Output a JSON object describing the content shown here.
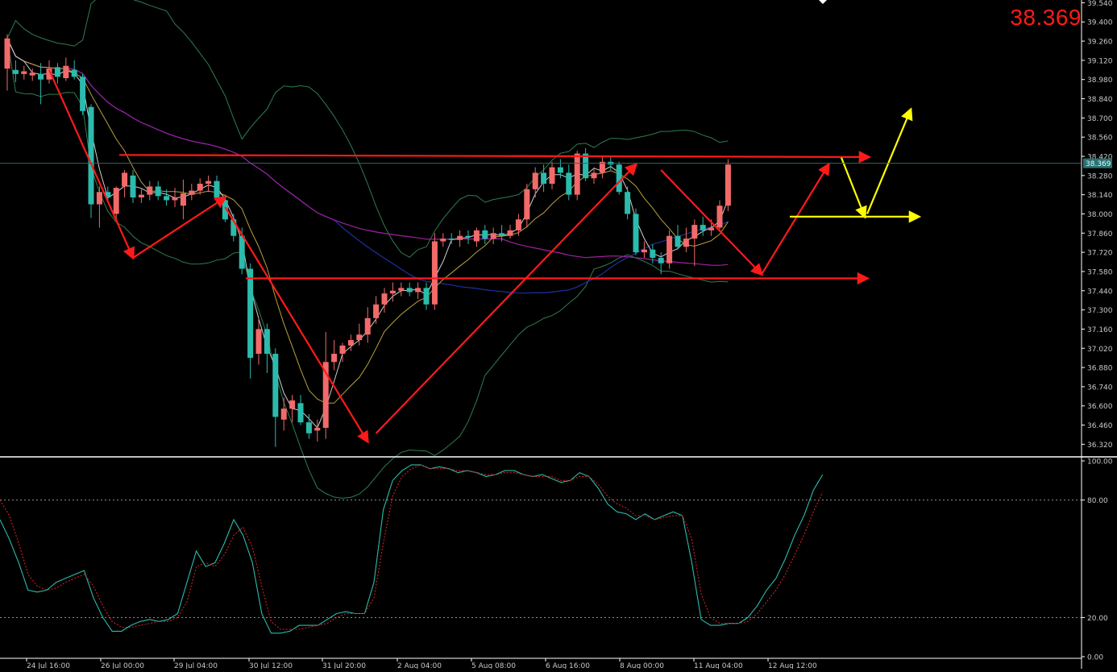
{
  "window": {
    "price_readout": "38.369"
  },
  "colors": {
    "background": "#000000",
    "bull_candle": "#f26a6a",
    "bear_candle": "#2bbbad",
    "axis": "#ffffff",
    "grid_label": "#c8c8c8",
    "annotation_red": "#ff1a1a",
    "annotation_yellow": "#ffff00",
    "bollinger": "#2e7d4f",
    "ma_fast": "#d0d0d0",
    "ma_mid": "#b8a23a",
    "ma_slow_blue": "#1f2fa0",
    "ma_magenta": "#a020a0",
    "current_price_line": "#2a6a6a",
    "stoch_main": "#2bbbad",
    "stoch_signal": "#d02020"
  },
  "chart_data": [
    {
      "type": "candlestick",
      "panel": "price",
      "y_ticks": [
        "39.540",
        "39.400",
        "39.260",
        "39.120",
        "38.980",
        "38.840",
        "38.700",
        "38.560",
        "38.420",
        "38.280",
        "38.140",
        "38.000",
        "37.860",
        "37.720",
        "37.580",
        "37.440",
        "37.300",
        "37.160",
        "37.020",
        "36.880",
        "36.740",
        "36.600",
        "36.460",
        "36.320"
      ],
      "ylim": [
        36.24,
        39.56
      ],
      "current_price_label": "38.369",
      "x_tick_labels": [
        "24 Jul 16:00",
        "26 Jul 00:00",
        "29 Jul 04:00",
        "30 Jul 12:00",
        "31 Jul 20:00",
        "2 Aug 04:00",
        "5 Aug 08:00",
        "6 Aug 16:00",
        "8 Aug 00:00",
        "11 Aug 04:00",
        "12 Aug 12:00"
      ],
      "horizontal_levels": [
        38.43,
        37.53,
        37.98
      ],
      "candles": [
        {
          "o": 39.06,
          "h": 39.31,
          "l": 38.9,
          "c": 39.28
        },
        {
          "o": 39.05,
          "h": 39.12,
          "l": 38.96,
          "c": 39.02
        },
        {
          "o": 39.02,
          "h": 39.08,
          "l": 38.98,
          "c": 39.04
        },
        {
          "o": 39.01,
          "h": 39.06,
          "l": 38.97,
          "c": 39.03
        },
        {
          "o": 39.02,
          "h": 39.1,
          "l": 38.8,
          "c": 38.98
        },
        {
          "o": 38.98,
          "h": 39.12,
          "l": 38.95,
          "c": 39.06
        },
        {
          "o": 39.07,
          "h": 39.1,
          "l": 38.95,
          "c": 39.0
        },
        {
          "o": 38.99,
          "h": 39.14,
          "l": 38.97,
          "c": 39.08
        },
        {
          "o": 39.05,
          "h": 39.12,
          "l": 38.98,
          "c": 39.0
        },
        {
          "o": 39.0,
          "h": 39.02,
          "l": 38.72,
          "c": 38.75
        },
        {
          "o": 38.78,
          "h": 38.8,
          "l": 37.97,
          "c": 38.07
        },
        {
          "o": 38.07,
          "h": 38.2,
          "l": 37.9,
          "c": 38.16
        },
        {
          "o": 38.16,
          "h": 38.2,
          "l": 38.1,
          "c": 38.12
        },
        {
          "o": 38.0,
          "h": 38.2,
          "l": 37.96,
          "c": 38.19
        },
        {
          "o": 38.2,
          "h": 38.32,
          "l": 38.12,
          "c": 38.3
        },
        {
          "o": 38.28,
          "h": 38.32,
          "l": 38.08,
          "c": 38.12
        },
        {
          "o": 38.12,
          "h": 38.18,
          "l": 38.08,
          "c": 38.14
        },
        {
          "o": 38.14,
          "h": 38.24,
          "l": 38.1,
          "c": 38.2
        },
        {
          "o": 38.2,
          "h": 38.24,
          "l": 38.1,
          "c": 38.13
        },
        {
          "o": 38.13,
          "h": 38.18,
          "l": 38.06,
          "c": 38.1
        },
        {
          "o": 38.1,
          "h": 38.19,
          "l": 38.05,
          "c": 38.12
        },
        {
          "o": 38.06,
          "h": 38.25,
          "l": 37.96,
          "c": 38.15
        },
        {
          "o": 38.14,
          "h": 38.22,
          "l": 38.1,
          "c": 38.17
        },
        {
          "o": 38.17,
          "h": 38.26,
          "l": 38.14,
          "c": 38.22
        },
        {
          "o": 38.22,
          "h": 38.28,
          "l": 38.16,
          "c": 38.24
        },
        {
          "o": 38.24,
          "h": 38.28,
          "l": 38.08,
          "c": 38.12
        },
        {
          "o": 38.1,
          "h": 38.14,
          "l": 37.94,
          "c": 37.96
        },
        {
          "o": 37.96,
          "h": 38.0,
          "l": 37.8,
          "c": 37.84
        },
        {
          "o": 37.84,
          "h": 37.9,
          "l": 37.56,
          "c": 37.6
        },
        {
          "o": 37.6,
          "h": 37.64,
          "l": 36.8,
          "c": 36.95
        },
        {
          "o": 36.98,
          "h": 37.24,
          "l": 36.9,
          "c": 37.16
        },
        {
          "o": 37.16,
          "h": 37.2,
          "l": 36.84,
          "c": 36.98
        },
        {
          "o": 36.98,
          "h": 37.02,
          "l": 36.3,
          "c": 36.52
        },
        {
          "o": 36.5,
          "h": 36.66,
          "l": 36.42,
          "c": 36.58
        },
        {
          "o": 36.58,
          "h": 36.68,
          "l": 36.48,
          "c": 36.64
        },
        {
          "o": 36.62,
          "h": 36.68,
          "l": 36.46,
          "c": 36.48
        },
        {
          "o": 36.48,
          "h": 36.54,
          "l": 36.36,
          "c": 36.4
        },
        {
          "o": 36.42,
          "h": 36.5,
          "l": 36.34,
          "c": 36.44
        },
        {
          "o": 36.44,
          "h": 37.14,
          "l": 36.36,
          "c": 36.92
        },
        {
          "o": 36.92,
          "h": 37.08,
          "l": 36.86,
          "c": 36.98
        },
        {
          "o": 36.98,
          "h": 37.06,
          "l": 36.92,
          "c": 37.04
        },
        {
          "o": 37.04,
          "h": 37.12,
          "l": 37.0,
          "c": 37.08
        },
        {
          "o": 37.08,
          "h": 37.2,
          "l": 37.04,
          "c": 37.12
        },
        {
          "o": 37.12,
          "h": 37.32,
          "l": 37.06,
          "c": 37.24
        },
        {
          "o": 37.24,
          "h": 37.4,
          "l": 37.2,
          "c": 37.34
        },
        {
          "o": 37.34,
          "h": 37.46,
          "l": 37.28,
          "c": 37.42
        },
        {
          "o": 37.42,
          "h": 37.5,
          "l": 37.36,
          "c": 37.44
        },
        {
          "o": 37.44,
          "h": 37.5,
          "l": 37.4,
          "c": 37.46
        },
        {
          "o": 37.46,
          "h": 37.5,
          "l": 37.4,
          "c": 37.43
        },
        {
          "o": 37.43,
          "h": 37.5,
          "l": 37.38,
          "c": 37.46
        },
        {
          "o": 37.46,
          "h": 37.5,
          "l": 37.3,
          "c": 37.34
        },
        {
          "o": 37.34,
          "h": 37.86,
          "l": 37.3,
          "c": 37.8
        },
        {
          "o": 37.8,
          "h": 37.86,
          "l": 37.76,
          "c": 37.82
        },
        {
          "o": 37.82,
          "h": 37.86,
          "l": 37.78,
          "c": 37.81
        },
        {
          "o": 37.81,
          "h": 37.88,
          "l": 37.76,
          "c": 37.84
        },
        {
          "o": 37.84,
          "h": 37.88,
          "l": 37.78,
          "c": 37.83
        },
        {
          "o": 37.8,
          "h": 37.9,
          "l": 37.76,
          "c": 37.88
        },
        {
          "o": 37.88,
          "h": 37.92,
          "l": 37.78,
          "c": 37.82
        },
        {
          "o": 37.82,
          "h": 37.9,
          "l": 37.78,
          "c": 37.86
        },
        {
          "o": 37.86,
          "h": 37.92,
          "l": 37.8,
          "c": 37.84
        },
        {
          "o": 37.84,
          "h": 37.92,
          "l": 37.82,
          "c": 37.88
        },
        {
          "o": 37.88,
          "h": 38.0,
          "l": 37.84,
          "c": 37.96
        },
        {
          "o": 37.96,
          "h": 38.22,
          "l": 37.9,
          "c": 38.18
        },
        {
          "o": 38.18,
          "h": 38.34,
          "l": 38.12,
          "c": 38.3
        },
        {
          "o": 38.3,
          "h": 38.36,
          "l": 38.16,
          "c": 38.22
        },
        {
          "o": 38.22,
          "h": 38.38,
          "l": 38.18,
          "c": 38.34
        },
        {
          "o": 38.34,
          "h": 38.4,
          "l": 38.26,
          "c": 38.3
        },
        {
          "o": 38.3,
          "h": 38.36,
          "l": 38.1,
          "c": 38.14
        },
        {
          "o": 38.14,
          "h": 38.46,
          "l": 38.1,
          "c": 38.44
        },
        {
          "o": 38.44,
          "h": 38.48,
          "l": 38.24,
          "c": 38.26
        },
        {
          "o": 38.26,
          "h": 38.34,
          "l": 38.22,
          "c": 38.3
        },
        {
          "o": 38.3,
          "h": 38.42,
          "l": 38.26,
          "c": 38.38
        },
        {
          "o": 38.38,
          "h": 38.42,
          "l": 38.32,
          "c": 38.36
        },
        {
          "o": 38.36,
          "h": 38.38,
          "l": 38.14,
          "c": 38.16
        },
        {
          "o": 38.16,
          "h": 38.2,
          "l": 37.96,
          "c": 38.0
        },
        {
          "o": 38.0,
          "h": 38.04,
          "l": 37.7,
          "c": 37.72
        },
        {
          "o": 37.72,
          "h": 37.8,
          "l": 37.68,
          "c": 37.74
        },
        {
          "o": 37.74,
          "h": 37.78,
          "l": 37.64,
          "c": 37.68
        },
        {
          "o": 37.68,
          "h": 37.72,
          "l": 37.56,
          "c": 37.64
        },
        {
          "o": 37.64,
          "h": 37.88,
          "l": 37.6,
          "c": 37.84
        },
        {
          "o": 37.84,
          "h": 37.92,
          "l": 37.74,
          "c": 37.76
        },
        {
          "o": 37.76,
          "h": 37.9,
          "l": 37.72,
          "c": 37.82
        },
        {
          "o": 37.82,
          "h": 37.96,
          "l": 37.62,
          "c": 37.92
        },
        {
          "o": 37.92,
          "h": 37.98,
          "l": 37.84,
          "c": 37.88
        },
        {
          "o": 37.88,
          "h": 37.96,
          "l": 37.84,
          "c": 37.9
        },
        {
          "o": 37.9,
          "h": 38.1,
          "l": 37.88,
          "c": 38.06
        },
        {
          "o": 38.06,
          "h": 38.4,
          "l": 38.02,
          "c": 38.36
        }
      ]
    },
    {
      "type": "line",
      "panel": "stochastic",
      "y_ticks": [
        "100.00",
        "80.00",
        "20.00",
        "0.00"
      ],
      "ylim": [
        0,
        100
      ],
      "levels": [
        80,
        20
      ],
      "series": [
        {
          "values": [
            70,
            60,
            48,
            34,
            33,
            34,
            38,
            40,
            42,
            44,
            30,
            20,
            13,
            13,
            16,
            18,
            19,
            18,
            19,
            22,
            38,
            54,
            46,
            48,
            58,
            70,
            62,
            48,
            22,
            12,
            12,
            13,
            16,
            16,
            16,
            19,
            22,
            23,
            22,
            22,
            38,
            75,
            90,
            95,
            98,
            98,
            96,
            97,
            96,
            94,
            95,
            94,
            92,
            93,
            95,
            95,
            93,
            92,
            93,
            91,
            89,
            90,
            94,
            92,
            86,
            78,
            74,
            73,
            70,
            73,
            70,
            72,
            74,
            72,
            48,
            19,
            16,
            16,
            17,
            17,
            20,
            26,
            34,
            40,
            50,
            62,
            72,
            85,
            93
          ]
        },
        {
          "values": [
            80,
            72,
            58,
            42,
            36,
            34,
            35,
            38,
            40,
            42,
            36,
            26,
            18,
            15,
            15,
            16,
            17,
            18,
            18,
            20,
            28,
            46,
            48,
            46,
            52,
            62,
            66,
            56,
            36,
            18,
            14,
            14,
            14,
            15,
            16,
            17,
            20,
            22,
            22,
            22,
            30,
            58,
            82,
            92,
            96,
            98,
            96,
            96,
            96,
            95,
            95,
            94,
            93,
            93,
            94,
            94,
            93,
            92,
            92,
            92,
            90,
            90,
            92,
            92,
            88,
            82,
            78,
            76,
            72,
            72,
            70,
            71,
            72,
            72,
            60,
            32,
            20,
            17,
            17,
            17,
            18,
            22,
            28,
            34,
            42,
            52,
            62,
            74,
            84
          ]
        }
      ]
    }
  ]
}
